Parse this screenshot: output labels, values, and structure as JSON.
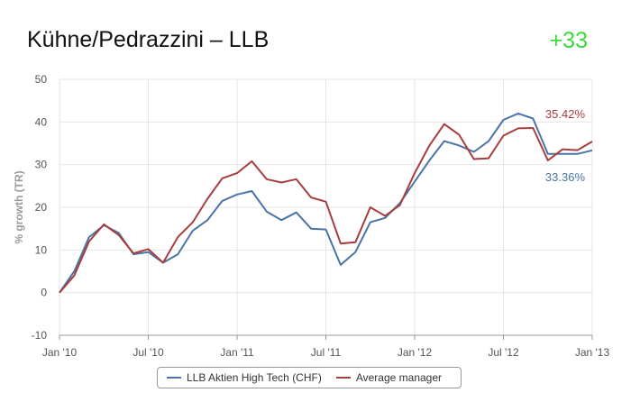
{
  "header": {
    "title": "Kühne/Pedrazzini – LLB",
    "score": "+33"
  },
  "colors": {
    "blue": "#4a74a8",
    "red": "#a83d3d",
    "score": "#3adb3a"
  },
  "chart_data": {
    "type": "line",
    "ylabel": "% growth (TR)",
    "ylim": [
      -10,
      50
    ],
    "yticks": [
      "-10",
      "0",
      "10",
      "20",
      "30",
      "40",
      "50"
    ],
    "xticks": [
      "Jan '10",
      "Jul '10",
      "Jan '11",
      "Jul '11",
      "Jan '12",
      "Jul '12",
      "Jan '13"
    ],
    "grid": true,
    "legend": "bottom",
    "x": [
      "2010-01",
      "2010-02",
      "2010-03",
      "2010-04",
      "2010-05",
      "2010-06",
      "2010-07",
      "2010-08",
      "2010-09",
      "2010-10",
      "2010-11",
      "2010-12",
      "2011-01",
      "2011-02",
      "2011-03",
      "2011-04",
      "2011-05",
      "2011-06",
      "2011-07",
      "2011-08",
      "2011-09",
      "2011-10",
      "2011-11",
      "2011-12",
      "2012-01",
      "2012-02",
      "2012-03",
      "2012-04",
      "2012-05",
      "2012-06",
      "2012-07",
      "2012-08",
      "2012-09",
      "2012-10",
      "2012-11",
      "2012-12",
      "2013-01"
    ],
    "series": [
      {
        "name": "LLB Aktien High Tech (CHF)",
        "color": "#4a74a8",
        "end_label": "33.36%",
        "values": [
          0,
          5,
          13,
          15.8,
          14,
          9,
          9.5,
          7,
          9,
          14.5,
          17,
          21.5,
          23,
          23.8,
          19,
          17,
          18.8,
          15,
          14.8,
          6.5,
          9.5,
          16.5,
          17.5,
          21,
          26,
          31,
          35.5,
          34.5,
          33,
          35.5,
          40.5,
          42,
          40.8,
          32.5,
          32.5,
          32.5,
          33.36
        ]
      },
      {
        "name": "Average manager",
        "color": "#a83d3d",
        "end_label": "35.42%",
        "values": [
          0,
          4,
          12,
          16,
          13.5,
          9.2,
          10.2,
          7,
          13,
          16.5,
          22,
          26.8,
          28,
          30.8,
          26.6,
          25.8,
          26.6,
          22.3,
          21.3,
          11.5,
          11.8,
          20,
          18,
          20.5,
          28,
          34.5,
          39.5,
          37,
          31.3,
          31.5,
          36.8,
          38.5,
          38.6,
          31,
          33.6,
          33.4,
          35.42
        ]
      }
    ]
  }
}
